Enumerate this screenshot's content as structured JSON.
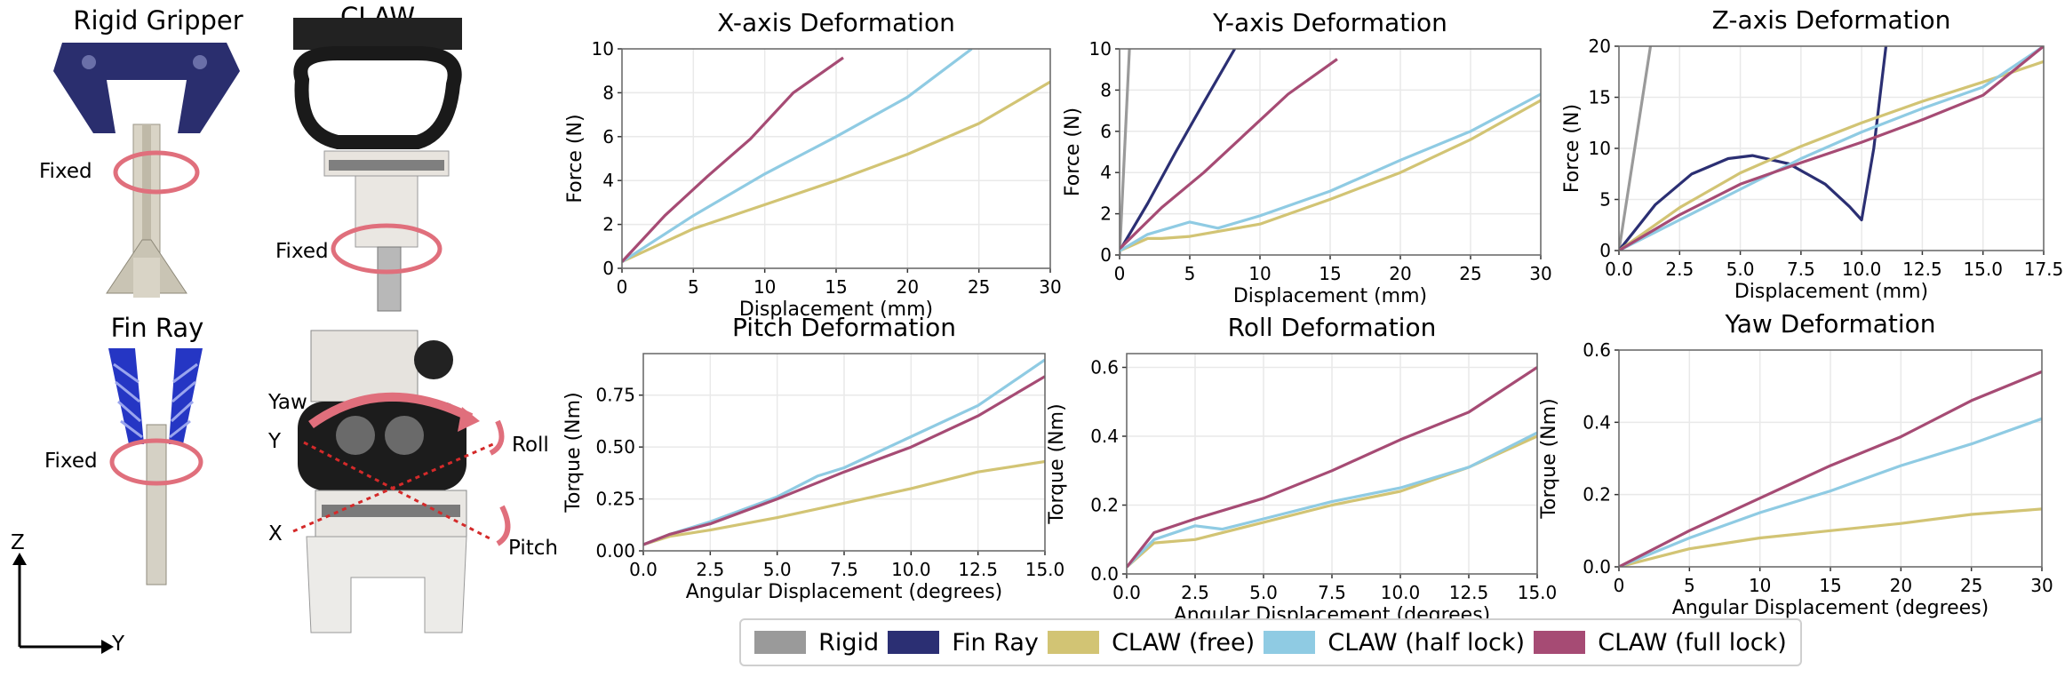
{
  "colors": {
    "rigid": "#9a9a9a",
    "finray": "#2b2f73",
    "free": "#d2c474",
    "half": "#8fcbe3",
    "full": "#a64b74",
    "circle": "#e06f7c",
    "grid": "#e9e9e9"
  },
  "photos": {
    "rigid_title": "Rigid Gripper",
    "claw_title": "CLAW",
    "finray_title": "Fin Ray",
    "fixed_rigid": "Fixed",
    "fixed_claw": "Fixed",
    "fixed_finray": "Fixed",
    "yaw": "Yaw",
    "y": "Y",
    "roll": "Roll",
    "x": "X",
    "pitch": "Pitch",
    "axis_z": "Z",
    "axis_y": "Y"
  },
  "legend": [
    {
      "key": "rigid",
      "label": "Rigid"
    },
    {
      "key": "finray",
      "label": "Fin Ray"
    },
    {
      "key": "free",
      "label": "CLAW (free)"
    },
    {
      "key": "half",
      "label": "CLAW (half lock)"
    },
    {
      "key": "full",
      "label": "CLAW (full lock)"
    }
  ],
  "chart_data": [
    {
      "type": "line",
      "title": "X-axis Deformation",
      "xlabel": "Displacement (mm)",
      "ylabel": "Force (N)",
      "xlim": [
        0,
        30
      ],
      "ylim": [
        0,
        10
      ],
      "xticks": [
        "0",
        "5",
        "10",
        "15",
        "20",
        "25",
        "30"
      ],
      "yticks": [
        "0",
        "2",
        "4",
        "6",
        "8",
        "10"
      ],
      "series": [
        {
          "key": "free",
          "name": "CLAW (free)",
          "x": [
            0,
            5,
            10,
            15,
            20,
            25,
            30
          ],
          "y": [
            0.3,
            1.8,
            2.9,
            4.0,
            5.2,
            6.6,
            8.5
          ]
        },
        {
          "key": "half",
          "name": "CLAW (half lock)",
          "x": [
            0,
            5,
            10,
            15,
            20,
            24.5
          ],
          "y": [
            0.3,
            2.4,
            4.3,
            6.0,
            7.8,
            10
          ]
        },
        {
          "key": "full",
          "name": "CLAW (full lock)",
          "x": [
            0,
            3,
            6,
            9,
            12,
            15.5
          ],
          "y": [
            0.3,
            2.4,
            4.2,
            5.9,
            8.0,
            9.6
          ]
        }
      ]
    },
    {
      "type": "line",
      "title": "Y-axis Deformation",
      "xlabel": "Displacement (mm)",
      "ylabel": "Force (N)",
      "xlim": [
        0,
        30
      ],
      "ylim": [
        0,
        10
      ],
      "xticks": [
        "0",
        "5",
        "10",
        "15",
        "20",
        "25",
        "30"
      ],
      "yticks": [
        "0",
        "2",
        "4",
        "6",
        "8",
        "10"
      ],
      "series": [
        {
          "key": "rigid",
          "name": "Rigid",
          "x": [
            0,
            0.7
          ],
          "y": [
            0,
            10
          ]
        },
        {
          "key": "finray",
          "name": "Fin Ray",
          "x": [
            0,
            2,
            4,
            6,
            8.2
          ],
          "y": [
            0.2,
            2.5,
            5.0,
            7.4,
            10
          ]
        },
        {
          "key": "free",
          "name": "CLAW (free)",
          "x": [
            0,
            2,
            3,
            5,
            10,
            15,
            20,
            25,
            30
          ],
          "y": [
            0.2,
            0.8,
            0.8,
            0.9,
            1.5,
            2.7,
            4.0,
            5.6,
            7.5
          ]
        },
        {
          "key": "half",
          "name": "CLAW (half lock)",
          "x": [
            0,
            2,
            5,
            7,
            10,
            15,
            20,
            25,
            30
          ],
          "y": [
            0.2,
            1.0,
            1.6,
            1.3,
            1.9,
            3.1,
            4.6,
            6.0,
            7.8
          ]
        },
        {
          "key": "full",
          "name": "CLAW (full lock)",
          "x": [
            0,
            3,
            6,
            9,
            12,
            15.5
          ],
          "y": [
            0.3,
            2.3,
            4.0,
            5.9,
            7.8,
            9.5
          ]
        }
      ]
    },
    {
      "type": "line",
      "title": "Z-axis Deformation",
      "xlabel": "Displacement (mm)",
      "ylabel": "Force (N)",
      "xlim": [
        0,
        17.5
      ],
      "ylim": [
        0,
        20
      ],
      "xticks": [
        "0.0",
        "2.5",
        "5.0",
        "7.5",
        "10.0",
        "12.5",
        "15.0",
        "17.5"
      ],
      "yticks": [
        "0",
        "5",
        "10",
        "15",
        "20"
      ],
      "series": [
        {
          "key": "rigid",
          "name": "Rigid",
          "x": [
            0,
            1.3
          ],
          "y": [
            0,
            20
          ]
        },
        {
          "key": "finray",
          "name": "Fin Ray",
          "x": [
            0,
            1.5,
            3,
            4.5,
            5.5,
            7,
            8.5,
            9.5,
            10.0,
            10.5,
            11.0
          ],
          "y": [
            0,
            4.5,
            7.5,
            9.0,
            9.3,
            8.5,
            6.5,
            4.3,
            3.0,
            10.0,
            20
          ]
        },
        {
          "key": "free",
          "name": "CLAW (free)",
          "x": [
            0,
            2.5,
            5,
            7.5,
            10,
            12.5,
            15,
            17.5
          ],
          "y": [
            0,
            4.2,
            7.6,
            10.2,
            12.5,
            14.6,
            16.5,
            18.5
          ]
        },
        {
          "key": "half",
          "name": "CLAW (half lock)",
          "x": [
            0,
            2.5,
            5,
            7.5,
            10,
            12.5,
            15,
            17.5
          ],
          "y": [
            0,
            3.0,
            6.0,
            9.0,
            11.6,
            13.9,
            16.0,
            20
          ]
        },
        {
          "key": "full",
          "name": "CLAW (full lock)",
          "x": [
            0,
            2.5,
            5,
            7.5,
            10,
            12.5,
            15,
            17.5
          ],
          "y": [
            0,
            3.5,
            6.5,
            8.6,
            10.6,
            12.8,
            15.2,
            20
          ]
        }
      ]
    },
    {
      "type": "line",
      "title": "Pitch Deformation",
      "xlabel": "Angular Displacement (degrees)",
      "ylabel": "Torque (Nm)",
      "xlim": [
        0,
        15
      ],
      "ylim": [
        0,
        0.95
      ],
      "xticks": [
        "0.0",
        "2.5",
        "5.0",
        "7.5",
        "10.0",
        "12.5",
        "15.0"
      ],
      "yticks": [
        "0.00",
        "0.25",
        "0.50",
        "0.75"
      ],
      "series": [
        {
          "key": "free",
          "name": "CLAW (free)",
          "x": [
            0,
            1,
            2.5,
            5,
            7.5,
            10,
            12.5,
            15
          ],
          "y": [
            0.03,
            0.07,
            0.1,
            0.16,
            0.23,
            0.3,
            0.38,
            0.43
          ]
        },
        {
          "key": "half",
          "name": "CLAW (half lock)",
          "x": [
            0,
            1,
            2.5,
            5,
            6.5,
            7.5,
            10,
            12.5,
            15
          ],
          "y": [
            0.03,
            0.08,
            0.14,
            0.26,
            0.36,
            0.4,
            0.55,
            0.7,
            0.92
          ]
        },
        {
          "key": "full",
          "name": "CLAW (full lock)",
          "x": [
            0,
            1,
            2.5,
            5,
            7.5,
            10,
            12.5,
            15
          ],
          "y": [
            0.03,
            0.08,
            0.13,
            0.25,
            0.38,
            0.5,
            0.65,
            0.84
          ]
        }
      ]
    },
    {
      "type": "line",
      "title": "Roll Deformation",
      "xlabel": "Angular Displacement (degrees)",
      "ylabel": "Torque (Nm)",
      "xlim": [
        0,
        15
      ],
      "ylim": [
        0,
        0.64
      ],
      "xticks": [
        "0.0",
        "2.5",
        "5.0",
        "7.5",
        "10.0",
        "12.5",
        "15.0"
      ],
      "yticks": [
        "0.0",
        "0.2",
        "0.4",
        "0.6"
      ],
      "series": [
        {
          "key": "free",
          "name": "CLAW (free)",
          "x": [
            0,
            1,
            2.5,
            5,
            7.5,
            10,
            12.5,
            15
          ],
          "y": [
            0.02,
            0.09,
            0.1,
            0.15,
            0.2,
            0.24,
            0.31,
            0.4
          ]
        },
        {
          "key": "half",
          "name": "CLAW (half lock)",
          "x": [
            0,
            1,
            2.5,
            3.5,
            5,
            7.5,
            10,
            12.5,
            15
          ],
          "y": [
            0.02,
            0.1,
            0.14,
            0.13,
            0.16,
            0.21,
            0.25,
            0.31,
            0.41
          ]
        },
        {
          "key": "full",
          "name": "CLAW (full lock)",
          "x": [
            0,
            1,
            2.5,
            5,
            7.5,
            10,
            12.5,
            15
          ],
          "y": [
            0.02,
            0.12,
            0.16,
            0.22,
            0.3,
            0.39,
            0.47,
            0.6
          ]
        }
      ]
    },
    {
      "type": "line",
      "title": "Yaw Deformation",
      "xlabel": "Angular Displacement (degrees)",
      "ylabel": "Torque (Nm)",
      "xlim": [
        0,
        30
      ],
      "ylim": [
        0,
        0.6
      ],
      "xticks": [
        "0",
        "5",
        "10",
        "15",
        "20",
        "25",
        "30"
      ],
      "yticks": [
        "0.0",
        "0.2",
        "0.4",
        "0.6"
      ],
      "series": [
        {
          "key": "free",
          "name": "CLAW (free)",
          "x": [
            0,
            5,
            10,
            15,
            20,
            25,
            30
          ],
          "y": [
            0.0,
            0.05,
            0.08,
            0.1,
            0.12,
            0.145,
            0.16
          ]
        },
        {
          "key": "half",
          "name": "CLAW (half lock)",
          "x": [
            0,
            5,
            10,
            15,
            20,
            25,
            30
          ],
          "y": [
            0.0,
            0.08,
            0.15,
            0.21,
            0.28,
            0.34,
            0.41
          ]
        },
        {
          "key": "full",
          "name": "CLAW (full lock)",
          "x": [
            0,
            5,
            10,
            15,
            20,
            25,
            30
          ],
          "y": [
            0.0,
            0.1,
            0.19,
            0.28,
            0.36,
            0.46,
            0.54
          ]
        }
      ]
    }
  ]
}
